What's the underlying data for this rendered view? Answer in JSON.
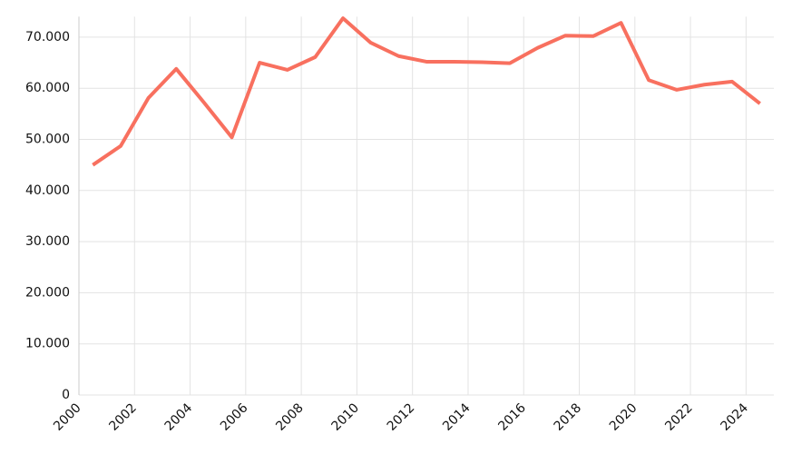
{
  "chart_data": {
    "type": "line",
    "x": [
      2000.5,
      2001.5,
      2002.5,
      2003.5,
      2004.5,
      2005.5,
      2006.5,
      2007.5,
      2008.5,
      2009.5,
      2010.5,
      2011.5,
      2012.5,
      2013.5,
      2014.5,
      2015.5,
      2016.5,
      2017.5,
      2018.5,
      2019.5,
      2020.5,
      2021.5,
      2022.5,
      2023.5,
      2024.5
    ],
    "series": [
      {
        "color": "#f8705f",
        "values": [
          45000,
          48700,
          58100,
          63800,
          57200,
          50400,
          65000,
          63600,
          66100,
          73700,
          68900,
          66300,
          65200,
          65200,
          65100,
          64900,
          67900,
          70300,
          70200,
          72800,
          61600,
          59700,
          60700,
          61300,
          57000
        ]
      }
    ],
    "xlim": [
      2000,
      2025
    ],
    "xticks": [
      2000,
      2002,
      2004,
      2006,
      2008,
      2010,
      2012,
      2014,
      2016,
      2018,
      2020,
      2022,
      2024
    ],
    "ylim": [
      0,
      74000
    ],
    "yticks": [
      0,
      {
        "value": 10000,
        "label": "10.000"
      },
      {
        "value": 20000,
        "label": "20.000"
      },
      {
        "value": 30000,
        "label": "30.000"
      },
      {
        "value": 40000,
        "label": "40.000"
      },
      {
        "value": 50000,
        "label": "50.000"
      },
      {
        "value": 60000,
        "label": "60.000"
      },
      {
        "value": 70000,
        "label": "70.000"
      }
    ],
    "grid": true
  }
}
